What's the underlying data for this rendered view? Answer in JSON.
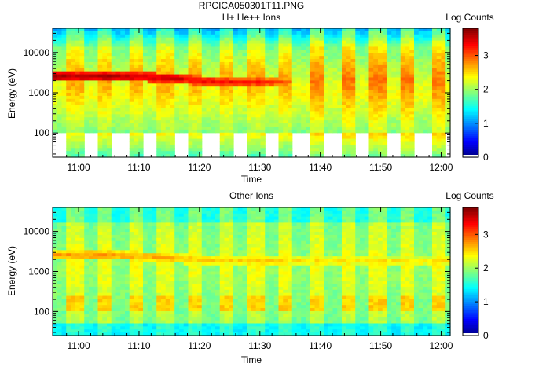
{
  "page_title": "RPCICA050301T11.PNG",
  "chart_data": [
    {
      "type": "heatmap",
      "title": "H+ He++ Ions",
      "xlabel": "Time",
      "ylabel": "Energy (eV)",
      "x_tick_labels": [
        "11:00",
        "11:10",
        "11:20",
        "11:30",
        "11:40",
        "11:50",
        "12:00"
      ],
      "x_tick_minutes": [
        0,
        10,
        20,
        30,
        40,
        50,
        60
      ],
      "x_range_minutes": [
        -4.3,
        61.5
      ],
      "y_scale": "log",
      "y_range": [
        25,
        40000
      ],
      "y_tick_labels": [
        "100",
        "1000",
        "10000"
      ],
      "y_tick_values": [
        100,
        1000,
        10000
      ],
      "colorbar": {
        "label": "Log Counts",
        "range": [
          0,
          3.8
        ],
        "tick_labels": [
          "0",
          "1",
          "2",
          "3"
        ],
        "tick_values": [
          0,
          1,
          2,
          3
        ]
      },
      "grid": false,
      "missing_data_below_eV": 100,
      "peak_band": {
        "time_minutes": [
          -4,
          0,
          5,
          10,
          15,
          20,
          25,
          30,
          35
        ],
        "energy_eV": [
          2500,
          2500,
          2500,
          2500,
          2300,
          2000,
          1800,
          1800,
          1800
        ],
        "peak_log_counts": [
          3.75,
          3.6,
          3.7,
          3.55,
          3.55,
          3.4,
          3.35,
          3.3,
          3.0
        ]
      }
    },
    {
      "type": "heatmap",
      "title": "Other Ions",
      "xlabel": "Time",
      "ylabel": "Energy (eV)",
      "x_tick_labels": [
        "11:00",
        "11:10",
        "11:20",
        "11:30",
        "11:40",
        "11:50",
        "12:00"
      ],
      "x_tick_minutes": [
        0,
        10,
        20,
        30,
        40,
        50,
        60
      ],
      "x_range_minutes": [
        -4.3,
        61.5
      ],
      "y_scale": "log",
      "y_range": [
        25,
        40000
      ],
      "y_tick_labels": [
        "100",
        "1000",
        "10000"
      ],
      "y_tick_values": [
        100,
        1000,
        10000
      ],
      "colorbar": {
        "label": "Log Counts",
        "range": [
          0,
          3.8
        ],
        "tick_labels": [
          "0",
          "1",
          "2",
          "3"
        ],
        "tick_values": [
          0,
          1,
          2,
          3
        ]
      },
      "grid": false,
      "peak_band": {
        "time_minutes": [
          -4,
          0,
          5,
          10,
          15,
          20,
          25,
          30,
          35
        ],
        "energy_eV": [
          2500,
          2500,
          2500,
          2400,
          2200,
          1900,
          1800,
          1800,
          1800
        ],
        "peak_log_counts": [
          2.8,
          2.8,
          2.8,
          2.75,
          2.75,
          2.6,
          2.55,
          2.6,
          2.5
        ]
      }
    }
  ]
}
